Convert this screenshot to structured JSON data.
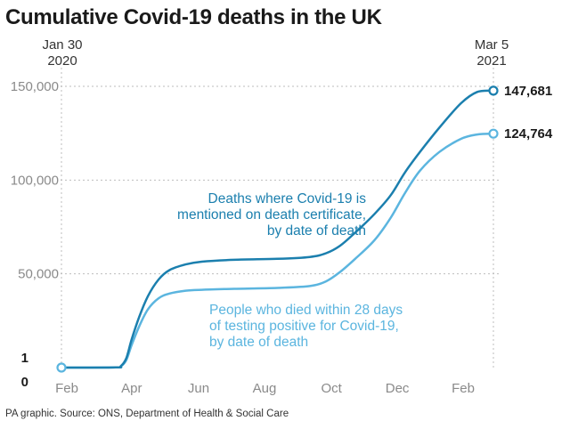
{
  "title": "Cumulative Covid-19 deaths in the UK",
  "start_label": {
    "line1": "Jan 30",
    "line2": "2020"
  },
  "end_label": {
    "line1": "Mar 5",
    "line2": "2021"
  },
  "source": "PA graphic. Source: ONS, Department of Health & Social Care",
  "colors": {
    "certificate": "#1b7fae",
    "positive_test": "#5bb5df",
    "grid": "#bdbdbd",
    "axis_text": "#8a8a8a"
  },
  "chart_data": {
    "type": "line",
    "title": "Cumulative Covid-19 deaths in the UK",
    "xlabel": "",
    "ylabel": "",
    "x_range_days": [
      0,
      400
    ],
    "ylim": [
      0,
      150000
    ],
    "y_ticks": [
      {
        "value": 150000,
        "label": "150,000"
      },
      {
        "value": 100000,
        "label": "100,000"
      },
      {
        "value": 50000,
        "label": "50,000"
      },
      {
        "value": 1,
        "label": "1"
      },
      {
        "value": 0,
        "label": "0"
      }
    ],
    "x_ticks": [
      {
        "day": 5,
        "label": "Feb"
      },
      {
        "day": 65,
        "label": "Apr"
      },
      {
        "day": 127,
        "label": "Jun"
      },
      {
        "day": 188,
        "label": "Aug"
      },
      {
        "day": 250,
        "label": "Oct"
      },
      {
        "day": 311,
        "label": "Dec"
      },
      {
        "day": 372,
        "label": "Feb"
      }
    ],
    "series": [
      {
        "name": "Deaths where Covid-19 is mentioned on death certificate, by date of death",
        "label_lines": [
          "Deaths where Covid-19 is",
          "mentioned on death certificate,",
          "by date of death"
        ],
        "end_value": 147681,
        "end_label": "147,681",
        "points": [
          [
            0,
            1
          ],
          [
            50,
            100
          ],
          [
            55,
            800
          ],
          [
            60,
            5000
          ],
          [
            65,
            15000
          ],
          [
            72,
            27000
          ],
          [
            80,
            38000
          ],
          [
            90,
            47000
          ],
          [
            100,
            52000
          ],
          [
            115,
            55000
          ],
          [
            130,
            56500
          ],
          [
            160,
            57500
          ],
          [
            200,
            58000
          ],
          [
            230,
            59000
          ],
          [
            245,
            61000
          ],
          [
            258,
            65000
          ],
          [
            272,
            72000
          ],
          [
            290,
            82000
          ],
          [
            305,
            92000
          ],
          [
            318,
            104000
          ],
          [
            332,
            115000
          ],
          [
            350,
            128000
          ],
          [
            370,
            141000
          ],
          [
            385,
            147000
          ],
          [
            400,
            147681
          ]
        ]
      },
      {
        "name": "People who died within 28 days of testing positive for Covid-19, by date of death",
        "label_lines": [
          "People who died within 28 days",
          "of testing positive for Covid-19,",
          "by date of death"
        ],
        "end_value": 124764,
        "end_label": "124,764",
        "points": [
          [
            0,
            1
          ],
          [
            50,
            100
          ],
          [
            55,
            700
          ],
          [
            60,
            4000
          ],
          [
            65,
            12000
          ],
          [
            72,
            22000
          ],
          [
            80,
            31000
          ],
          [
            90,
            37000
          ],
          [
            100,
            39500
          ],
          [
            115,
            41000
          ],
          [
            130,
            41500
          ],
          [
            160,
            42000
          ],
          [
            200,
            42500
          ],
          [
            230,
            43500
          ],
          [
            245,
            46000
          ],
          [
            258,
            51000
          ],
          [
            272,
            58000
          ],
          [
            290,
            68000
          ],
          [
            305,
            80000
          ],
          [
            318,
            93000
          ],
          [
            332,
            105000
          ],
          [
            350,
            115000
          ],
          [
            370,
            122000
          ],
          [
            385,
            124300
          ],
          [
            400,
            124764
          ]
        ]
      }
    ]
  }
}
